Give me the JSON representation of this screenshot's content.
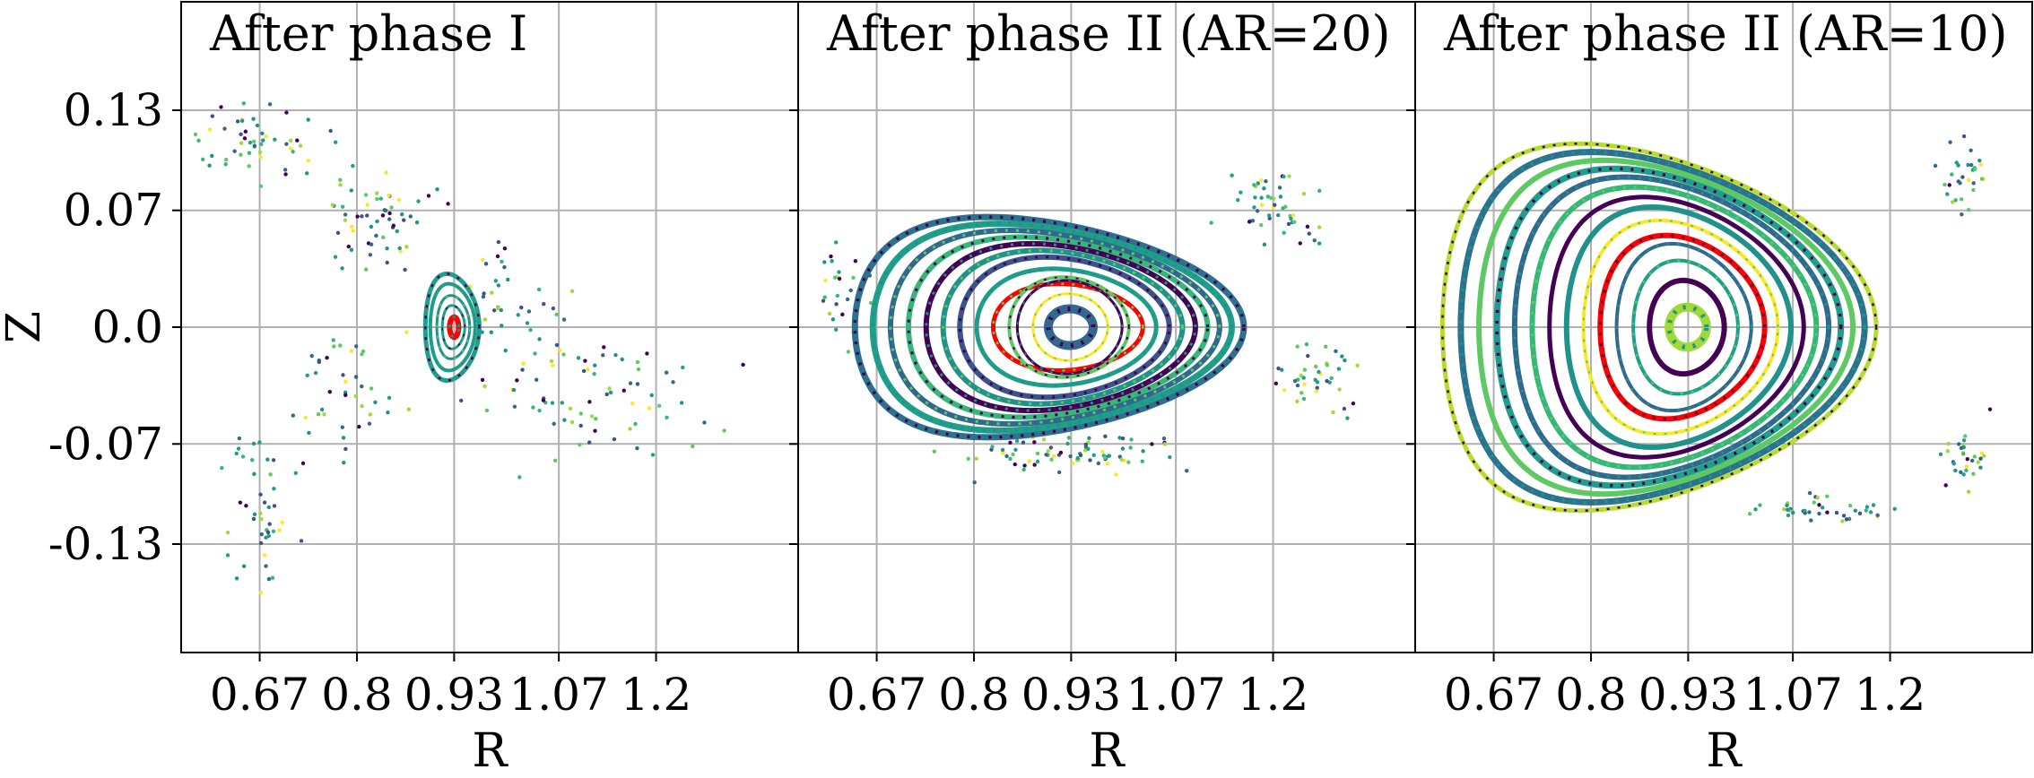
{
  "chart_data": [
    {
      "type": "scatter",
      "title": "After phase I",
      "xlabel": "R",
      "ylabel": "Z",
      "xlim": [
        0.565,
        1.39
      ],
      "ylim": [
        -0.195,
        0.195
      ],
      "xticks": [
        0.67,
        0.8,
        0.93,
        1.07,
        1.2
      ],
      "xtick_labels": [
        "0.67",
        "0.8",
        "0.93",
        "1.07",
        "1.2"
      ],
      "yticks": [
        0.13,
        0.07,
        0.0,
        -0.07,
        -0.13
      ],
      "ytick_labels": [
        "0.13",
        "0.07",
        "0.0",
        "-0.07",
        "-0.13"
      ],
      "grid": true,
      "magnetic_axis": {
        "R": 0.93,
        "Z": 0.0
      },
      "surfaces": [
        {
          "a": 0.015,
          "b": 0.013,
          "tri": 0.15,
          "color": "#1f9e89",
          "width": 3
        },
        {
          "a": 0.022,
          "b": 0.019,
          "tri": 0.15,
          "color": "#21918c",
          "width": 3
        },
        {
          "a": 0.03,
          "b": 0.026,
          "tri": 0.18,
          "color": "#1f9e89",
          "width": 4
        },
        {
          "a": 0.036,
          "b": 0.032,
          "tri": 0.2,
          "color": "#1f9e89",
          "width": 5
        },
        {
          "a": 0.006,
          "b": 0.006,
          "tri": 0,
          "color": "#ff0000",
          "width": 6
        }
      ],
      "scatter_clouds": [
        {
          "R": 0.66,
          "Z": 0.11,
          "sR": 0.08,
          "sZ": 0.02,
          "n": 55
        },
        {
          "R": 0.82,
          "Z": 0.06,
          "sR": 0.06,
          "sZ": 0.03,
          "n": 60
        },
        {
          "R": 0.67,
          "Z": -0.11,
          "sR": 0.04,
          "sZ": 0.04,
          "n": 45
        },
        {
          "R": 0.78,
          "Z": -0.04,
          "sR": 0.05,
          "sZ": 0.03,
          "n": 40
        },
        {
          "R": 1.12,
          "Z": -0.04,
          "sR": 0.12,
          "sZ": 0.03,
          "n": 70
        },
        {
          "R": 1.0,
          "Z": 0.01,
          "sR": 0.06,
          "sZ": 0.04,
          "n": 40
        }
      ]
    },
    {
      "type": "scatter",
      "title": "After phase II (AR=20)",
      "xlabel": "R",
      "ylabel": "",
      "xlim": [
        0.565,
        1.39
      ],
      "ylim": [
        -0.195,
        0.195
      ],
      "xticks": [
        0.67,
        0.8,
        0.93,
        1.07,
        1.2
      ],
      "xtick_labels": [
        "0.67",
        "0.8",
        "0.93",
        "1.07",
        "1.2"
      ],
      "yticks": [
        0.13,
        0.07,
        0.0,
        -0.07,
        -0.13
      ],
      "grid": true,
      "magnetic_axis": {
        "R": 0.93,
        "Z": 0.0
      },
      "surfaces": [
        {
          "a": 0.03,
          "b": 0.011,
          "tri": 0.05,
          "color": "#31688e",
          "width": 10
        },
        {
          "a": 0.05,
          "b": 0.02,
          "tri": 0.06,
          "color": "#fde725",
          "width": 3
        },
        {
          "a": 0.07,
          "b": 0.028,
          "tri": 0.08,
          "color": "#440154",
          "width": 3
        },
        {
          "a": 0.08,
          "b": 0.03,
          "tri": 0.1,
          "color": "#5ec962",
          "width": 4
        },
        {
          "a": 0.1,
          "b": 0.026,
          "tri": 0.12,
          "color": "#ff0000",
          "width": 5
        },
        {
          "a": 0.12,
          "b": 0.035,
          "tri": 0.15,
          "color": "#1f9e89",
          "width": 5
        },
        {
          "a": 0.14,
          "b": 0.042,
          "tri": 0.18,
          "color": "#3b528b",
          "width": 6
        },
        {
          "a": 0.16,
          "b": 0.046,
          "tri": 0.2,
          "color": "#21918c",
          "width": 6
        },
        {
          "a": 0.18,
          "b": 0.05,
          "tri": 0.22,
          "color": "#440154",
          "width": 6
        },
        {
          "a": 0.2,
          "b": 0.054,
          "tri": 0.25,
          "color": "#35b779",
          "width": 6
        },
        {
          "a": 0.22,
          "b": 0.058,
          "tri": 0.28,
          "color": "#31688e",
          "width": 6
        },
        {
          "a": 0.24,
          "b": 0.062,
          "tri": 0.3,
          "color": "#1f9e89",
          "width": 7
        },
        {
          "a": 0.26,
          "b": 0.066,
          "tri": 0.32,
          "color": "#2c728e",
          "width": 7
        }
      ],
      "scatter_clouds": [
        {
          "R": 0.93,
          "Z": -0.075,
          "sR": 0.12,
          "sZ": 0.01,
          "n": 80
        },
        {
          "R": 1.2,
          "Z": 0.07,
          "sR": 0.06,
          "sZ": 0.02,
          "n": 50
        },
        {
          "R": 0.62,
          "Z": 0.02,
          "sR": 0.03,
          "sZ": 0.03,
          "n": 25
        },
        {
          "R": 1.25,
          "Z": -0.03,
          "sR": 0.05,
          "sZ": 0.02,
          "n": 40
        }
      ]
    },
    {
      "type": "scatter",
      "title": "After phase II (AR=10)",
      "xlabel": "R",
      "ylabel": "",
      "xlim": [
        0.565,
        1.39
      ],
      "ylim": [
        -0.195,
        0.195
      ],
      "xticks": [
        0.67,
        0.8,
        0.93,
        1.07,
        1.2
      ],
      "xtick_labels": [
        "0.67",
        "0.8",
        "0.93",
        "1.07",
        "1.2"
      ],
      "yticks": [
        0.13,
        0.07,
        0.0,
        -0.07,
        -0.13
      ],
      "grid": true,
      "magnetic_axis": {
        "R": 0.93,
        "Z": 0.0
      },
      "surfaces": [
        {
          "a": 0.025,
          "b": 0.012,
          "tri": 0.05,
          "color": "#a0da39",
          "width": 10
        },
        {
          "a": 0.05,
          "b": 0.028,
          "tri": 0.1,
          "color": "#440154",
          "width": 6
        },
        {
          "a": 0.07,
          "b": 0.04,
          "tri": 0.14,
          "color": "#1f9e89",
          "width": 4
        },
        {
          "a": 0.09,
          "b": 0.05,
          "tri": 0.18,
          "color": "#31688e",
          "width": 4
        },
        {
          "a": 0.11,
          "b": 0.055,
          "tri": 0.2,
          "color": "#ff0000",
          "width": 6
        },
        {
          "a": 0.13,
          "b": 0.064,
          "tri": 0.22,
          "color": "#fde725",
          "width": 4
        },
        {
          "a": 0.15,
          "b": 0.072,
          "tri": 0.24,
          "color": "#21918c",
          "width": 6
        },
        {
          "a": 0.17,
          "b": 0.078,
          "tri": 0.26,
          "color": "#440154",
          "width": 5
        },
        {
          "a": 0.19,
          "b": 0.084,
          "tri": 0.28,
          "color": "#35b779",
          "width": 6
        },
        {
          "a": 0.21,
          "b": 0.09,
          "tri": 0.3,
          "color": "#31688e",
          "width": 6
        },
        {
          "a": 0.23,
          "b": 0.095,
          "tri": 0.32,
          "color": "#1f9e89",
          "width": 7
        },
        {
          "a": 0.25,
          "b": 0.1,
          "tri": 0.34,
          "color": "#5ec962",
          "width": 6
        },
        {
          "a": 0.27,
          "b": 0.105,
          "tri": 0.36,
          "color": "#2c728e",
          "width": 7
        },
        {
          "a": 0.29,
          "b": 0.11,
          "tri": 0.38,
          "color": "#b5de2b",
          "width": 5
        }
      ],
      "scatter_clouds": [
        {
          "R": 1.3,
          "Z": 0.09,
          "sR": 0.03,
          "sZ": 0.02,
          "n": 30
        },
        {
          "R": 1.3,
          "Z": -0.08,
          "sR": 0.03,
          "sZ": 0.02,
          "n": 30
        },
        {
          "R": 1.1,
          "Z": -0.11,
          "sR": 0.08,
          "sZ": 0.008,
          "n": 40
        }
      ]
    }
  ]
}
